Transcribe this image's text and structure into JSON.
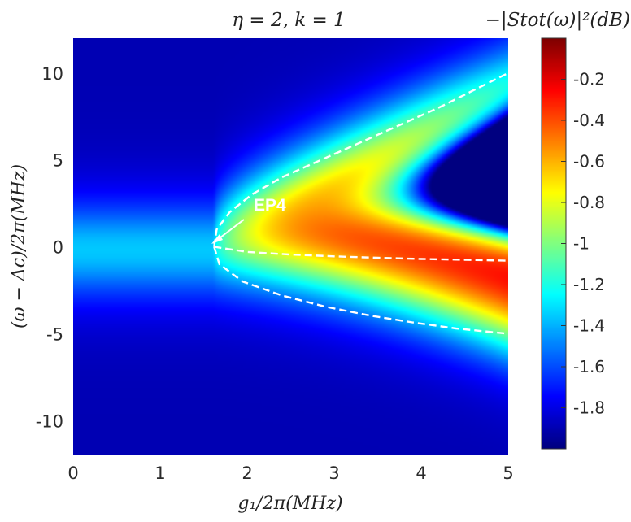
{
  "chart_data": {
    "type": "heatmap",
    "title": "η = 2, k = 1",
    "xlabel": "g₁/2π(MHz)",
    "ylabel": "(ω − Δc)/2π(MHz)",
    "colorbar_label": "−|Stot(ω)|²(dB)",
    "xlim": [
      0,
      5
    ],
    "ylim": [
      -12,
      12
    ],
    "clim": [
      -2.0,
      0
    ],
    "colormap": "jet",
    "xticks": [
      "0",
      "1",
      "2",
      "3",
      "4",
      "5"
    ],
    "yticks": [
      "-10",
      "-5",
      "0",
      "5",
      "10"
    ],
    "colorbar_ticks": [
      "-0.2",
      "-0.4",
      "-0.6",
      "-0.8",
      "-1",
      "-1.2",
      "-1.4",
      "-1.6",
      "-1.8"
    ],
    "annotation": {
      "text": "EP4",
      "x": 1.62,
      "y": 0
    },
    "ep_curves": {
      "upper": [
        [
          1.62,
          0
        ],
        [
          1.65,
          1
        ],
        [
          1.8,
          2
        ],
        [
          2.05,
          3
        ],
        [
          2.4,
          4
        ],
        [
          2.85,
          5
        ],
        [
          3.3,
          6
        ],
        [
          3.75,
          7
        ],
        [
          4.2,
          8
        ],
        [
          4.6,
          9
        ],
        [
          5.0,
          10
        ]
      ],
      "middle": [
        [
          1.62,
          0
        ],
        [
          2.0,
          -0.3
        ],
        [
          2.5,
          -0.45
        ],
        [
          3.0,
          -0.55
        ],
        [
          3.5,
          -0.63
        ],
        [
          4.0,
          -0.7
        ],
        [
          4.5,
          -0.75
        ],
        [
          5.0,
          -0.8
        ]
      ],
      "lower": [
        [
          1.62,
          0
        ],
        [
          1.68,
          -1
        ],
        [
          1.95,
          -2
        ],
        [
          2.4,
          -2.8
        ],
        [
          2.9,
          -3.45
        ],
        [
          3.4,
          -3.95
        ],
        [
          3.9,
          -4.35
        ],
        [
          4.4,
          -4.7
        ],
        [
          5.0,
          -5.0
        ]
      ]
    }
  }
}
